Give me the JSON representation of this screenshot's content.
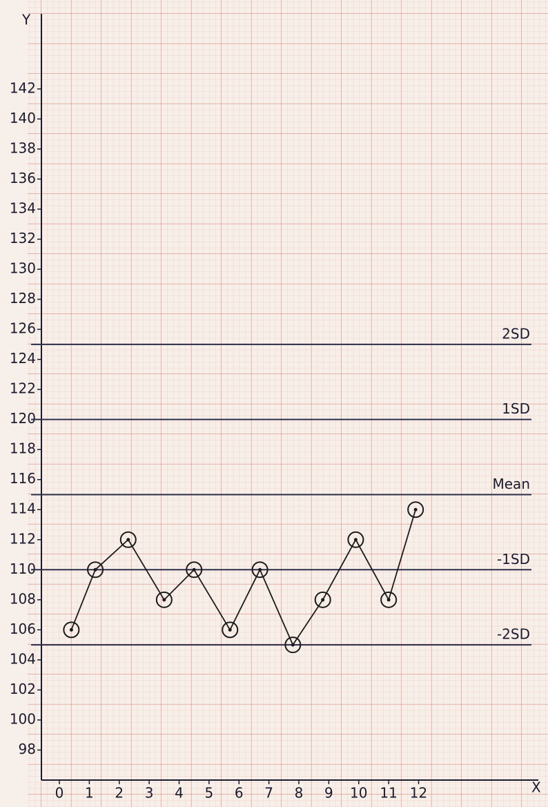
{
  "chart_data": {
    "type": "line",
    "x_label": "X",
    "y_label": "Y",
    "x": [
      0.4,
      1.2,
      2.3,
      3.5,
      4.5,
      5.7,
      6.7,
      7.8,
      8.8,
      9.9,
      11,
      11.9
    ],
    "series": [
      {
        "color": "#1a1a1a",
        "values": [
          106,
          110,
          112,
          108,
          110,
          106,
          110,
          105,
          108,
          112,
          108,
          114
        ]
      }
    ],
    "control_lines": [
      {
        "value": 125,
        "label": "2SD"
      },
      {
        "value": 120,
        "label": "1SD"
      },
      {
        "value": 115,
        "label": "Mean"
      },
      {
        "value": 110,
        "label": "-1SD"
      },
      {
        "value": 105,
        "label": "-2SD"
      }
    ],
    "control_line_color": "#2b2f4a",
    "xlim": [
      -0.6,
      16
    ],
    "xticks": [
      0,
      1,
      2,
      3,
      4,
      5,
      6,
      7,
      8,
      9,
      10,
      11,
      12
    ],
    "ylim": [
      96,
      147
    ],
    "yticks": [
      98,
      100,
      102,
      104,
      106,
      108,
      110,
      112,
      114,
      116,
      118,
      120,
      122,
      124,
      126,
      128,
      130,
      132,
      134,
      136,
      138,
      140,
      142
    ],
    "grid": true
  }
}
